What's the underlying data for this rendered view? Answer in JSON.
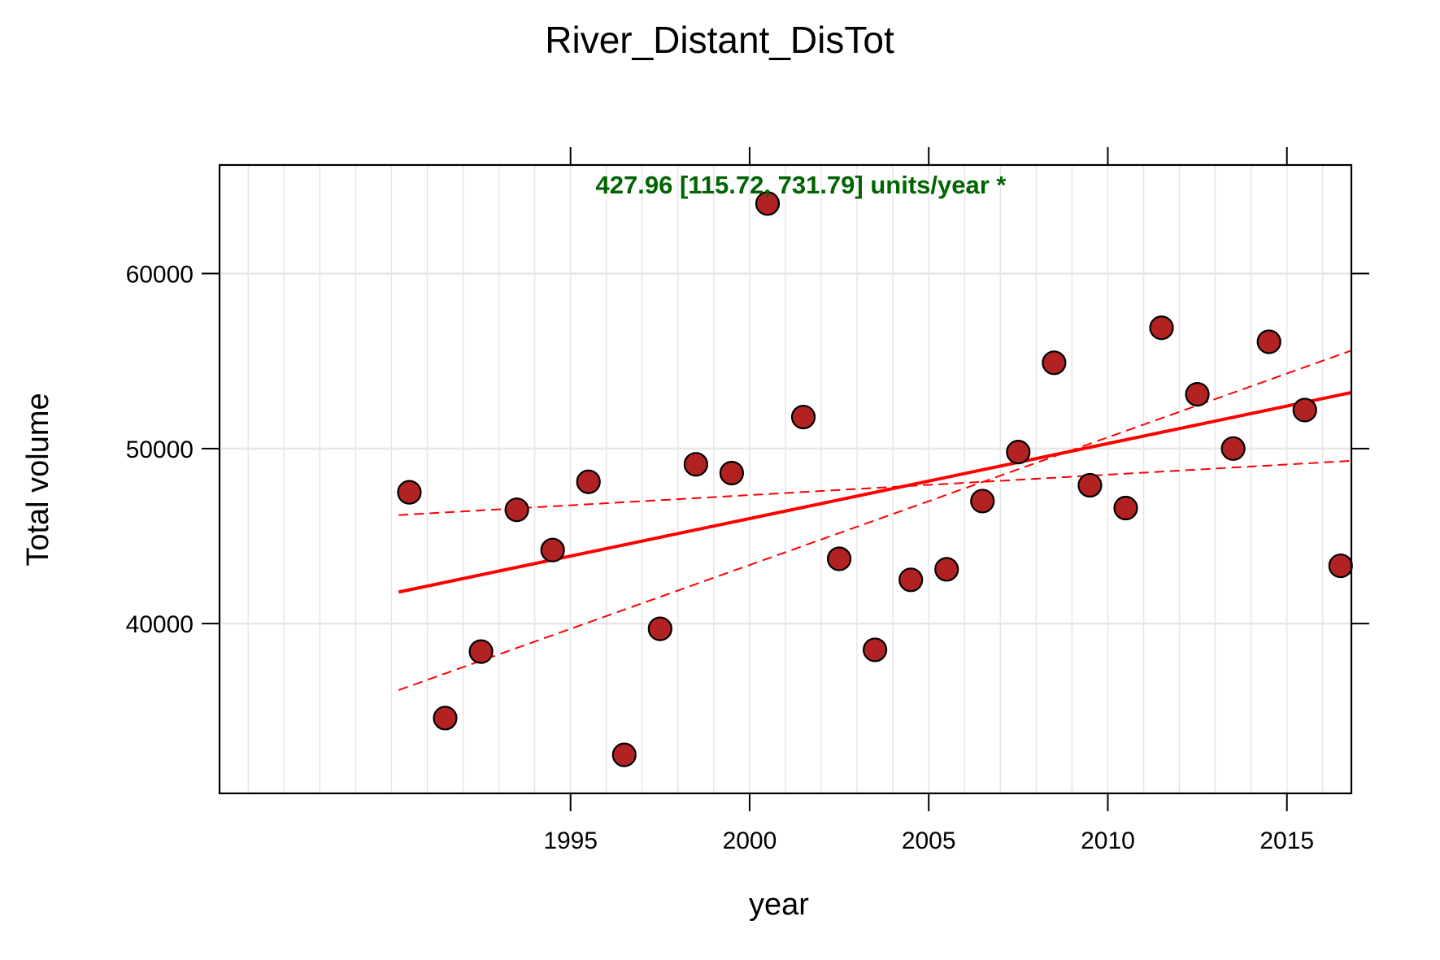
{
  "chart_data": {
    "type": "scatter",
    "title": "River_Distant_DisTot",
    "xlabel": "year",
    "ylabel": "Total volume",
    "xlim": [
      1985.2,
      2016.8
    ],
    "ylim": [
      30300,
      66200
    ],
    "x_ticks": [
      1995,
      2000,
      2005,
      2010,
      2015
    ],
    "x_tick_labels": [
      "1995",
      "2000",
      "2005",
      "2010",
      "2015"
    ],
    "y_ticks": [
      40000,
      50000,
      60000
    ],
    "y_tick_labels": [
      "40000",
      "50000",
      "60000"
    ],
    "grid": true,
    "annotation": "427.96 [115.72, 731.79] units/year *",
    "series": [
      {
        "type": "scatter",
        "x": [
          1990.5,
          1991.5,
          1992.5,
          1993.5,
          1994.5,
          1995.5,
          1996.5,
          1997.5,
          1998.5,
          1999.5,
          2000.5,
          2001.5,
          2002.5,
          2003.5,
          2004.5,
          2005.5,
          2006.5,
          2007.5,
          2008.5,
          2009.5,
          2010.5,
          2011.5,
          2012.5,
          2013.5,
          2014.5,
          2015.5,
          2016.5
        ],
        "y": [
          47500,
          34600,
          38400,
          46500,
          44200,
          48100,
          32500,
          39700,
          49100,
          48600,
          64000,
          51800,
          43700,
          38500,
          42500,
          43100,
          47000,
          49800,
          54900,
          47900,
          46600,
          56900,
          53100,
          50000,
          56100,
          52200,
          43300
        ]
      }
    ],
    "trend": {
      "slope": {
        "x": [
          1990.2,
          2016.8
        ],
        "y": [
          41800,
          53200
        ]
      },
      "ci_upper": {
        "x": [
          1990.2,
          2016.8
        ],
        "y": [
          46200,
          49300
        ]
      },
      "ci_lower": {
        "x": [
          1990.2,
          2016.8
        ],
        "y": [
          36200,
          55600
        ]
      }
    },
    "colors": {
      "point_fill": "#b22222",
      "point_stroke": "#000000",
      "trend_line": "#ff0000",
      "annotation": "#006400",
      "grid": "#e6e6e6"
    }
  }
}
